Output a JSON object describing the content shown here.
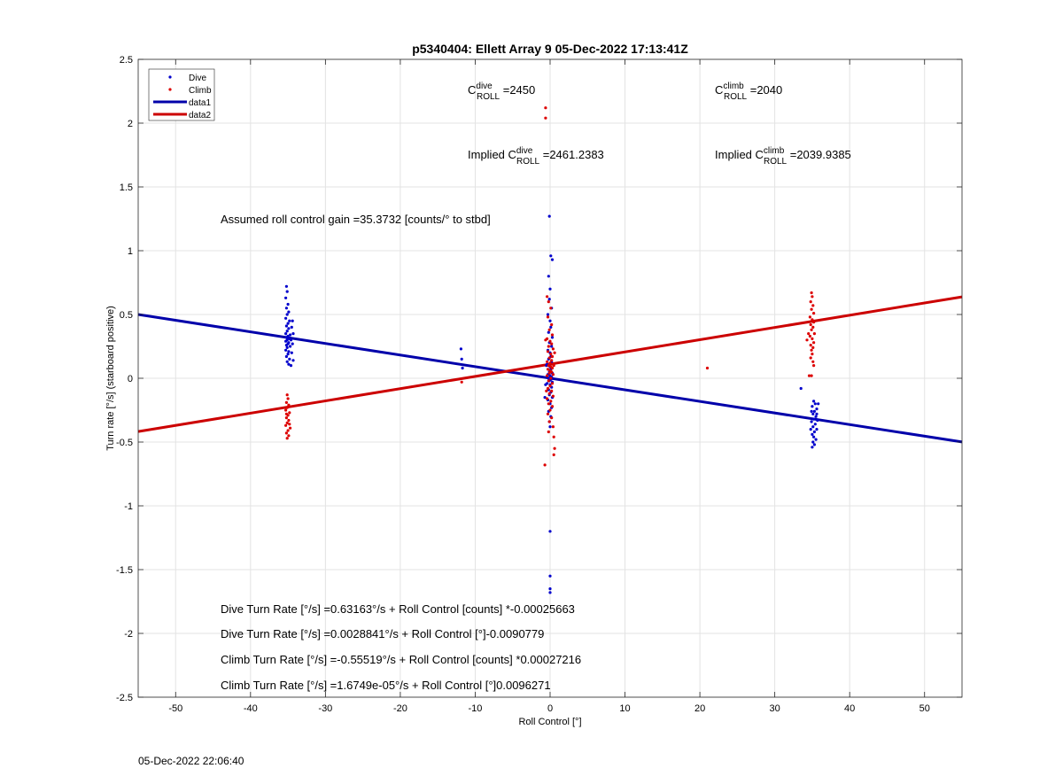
{
  "chart_data": {
    "type": "scatter",
    "title": "p5340404: Ellett Array 9 05-Dec-2022 17:13:41Z",
    "xlabel": "Roll Control [°]",
    "ylabel": "Turn rate [°/s] (starboard positive)",
    "xlim": [
      -55,
      55
    ],
    "ylim": [
      -2.5,
      2.5
    ],
    "xticks": [
      -50,
      -40,
      -30,
      -20,
      -10,
      0,
      10,
      20,
      30,
      40,
      50
    ],
    "yticks": [
      -2.5,
      -2,
      -1.5,
      -1,
      -0.5,
      0,
      0.5,
      1,
      1.5,
      2,
      2.5
    ],
    "grid": true,
    "legend": {
      "placement": "top-left",
      "entries": [
        "Dive",
        "Climb",
        "data1",
        "data2"
      ]
    },
    "series": [
      {
        "name": "Dive",
        "kind": "points",
        "color": "#0000cc",
        "points": [
          [
            -35.2,
            0.72
          ],
          [
            -35.1,
            0.68
          ],
          [
            -35.3,
            0.63
          ],
          [
            -35.0,
            0.58
          ],
          [
            -35.2,
            0.55
          ],
          [
            -34.9,
            0.52
          ],
          [
            -35.1,
            0.5
          ],
          [
            -35.3,
            0.47
          ],
          [
            -34.8,
            0.45
          ],
          [
            -35.0,
            0.43
          ],
          [
            -35.2,
            0.41
          ],
          [
            -34.9,
            0.39
          ],
          [
            -35.1,
            0.37
          ],
          [
            -35.3,
            0.35
          ],
          [
            -34.7,
            0.34
          ],
          [
            -35.0,
            0.33
          ],
          [
            -35.2,
            0.32
          ],
          [
            -34.8,
            0.31
          ],
          [
            -35.1,
            0.3
          ],
          [
            -35.3,
            0.29
          ],
          [
            -34.9,
            0.28
          ],
          [
            -35.0,
            0.27
          ],
          [
            -35.2,
            0.26
          ],
          [
            -34.7,
            0.25
          ],
          [
            -35.1,
            0.24
          ],
          [
            -35.3,
            0.22
          ],
          [
            -34.9,
            0.21
          ],
          [
            -35.0,
            0.19
          ],
          [
            -35.2,
            0.17
          ],
          [
            -34.8,
            0.15
          ],
          [
            -35.1,
            0.13
          ],
          [
            -34.9,
            0.11
          ],
          [
            -34.6,
            0.1
          ],
          [
            -34.4,
            0.45
          ],
          [
            -34.5,
            0.4
          ],
          [
            -34.3,
            0.35
          ],
          [
            -34.6,
            0.3
          ],
          [
            -34.4,
            0.27
          ],
          [
            -34.5,
            0.2
          ],
          [
            -34.3,
            0.14
          ],
          [
            -11.9,
            0.23
          ],
          [
            -11.8,
            0.15
          ],
          [
            -11.7,
            0.08
          ],
          [
            -0.1,
            1.27
          ],
          [
            0.1,
            0.96
          ],
          [
            0.3,
            0.93
          ],
          [
            -0.2,
            0.8
          ],
          [
            0.0,
            0.7
          ],
          [
            -0.1,
            0.62
          ],
          [
            0.2,
            0.55
          ],
          [
            -0.3,
            0.5
          ],
          [
            0.0,
            0.45
          ],
          [
            0.1,
            0.4
          ],
          [
            -0.2,
            0.36
          ],
          [
            0.3,
            0.32
          ],
          [
            -0.1,
            0.28
          ],
          [
            0.2,
            0.25
          ],
          [
            -0.3,
            0.22
          ],
          [
            0.0,
            0.2
          ],
          [
            0.1,
            0.17
          ],
          [
            -0.2,
            0.15
          ],
          [
            0.2,
            0.13
          ],
          [
            -0.4,
            0.11
          ],
          [
            0.0,
            0.09
          ],
          [
            0.1,
            0.07
          ],
          [
            -0.1,
            0.05
          ],
          [
            0.3,
            0.04
          ],
          [
            -0.3,
            0.03
          ],
          [
            0.0,
            0.02
          ],
          [
            0.2,
            0.01
          ],
          [
            -0.2,
            0.0
          ],
          [
            0.1,
            -0.01
          ],
          [
            -0.1,
            -0.02
          ],
          [
            0.3,
            -0.03
          ],
          [
            -0.4,
            -0.04
          ],
          [
            0.0,
            -0.05
          ],
          [
            0.2,
            -0.07
          ],
          [
            -0.2,
            -0.09
          ],
          [
            0.1,
            -0.11
          ],
          [
            -0.1,
            -0.13
          ],
          [
            0.3,
            -0.15
          ],
          [
            -0.3,
            -0.17
          ],
          [
            0.0,
            -0.2
          ],
          [
            0.2,
            -0.23
          ],
          [
            -0.2,
            -0.26
          ],
          [
            0.1,
            -0.3
          ],
          [
            -0.1,
            -0.34
          ],
          [
            0.0,
            -0.38
          ],
          [
            -0.6,
            -0.05
          ],
          [
            -0.5,
            0.1
          ],
          [
            -0.7,
            -0.15
          ],
          [
            0.0,
            -1.2
          ],
          [
            0.0,
            -1.55
          ],
          [
            0.0,
            -1.65
          ],
          [
            0.0,
            -1.68
          ],
          [
            33.5,
            -0.08
          ],
          [
            35.2,
            -0.18
          ],
          [
            35.4,
            -0.2
          ],
          [
            35.0,
            -0.22
          ],
          [
            35.6,
            -0.24
          ],
          [
            35.3,
            -0.26
          ],
          [
            35.1,
            -0.28
          ],
          [
            35.5,
            -0.3
          ],
          [
            35.2,
            -0.32
          ],
          [
            34.9,
            -0.34
          ],
          [
            35.4,
            -0.36
          ],
          [
            35.1,
            -0.38
          ],
          [
            35.6,
            -0.4
          ],
          [
            35.3,
            -0.42
          ],
          [
            35.0,
            -0.44
          ],
          [
            35.2,
            -0.46
          ],
          [
            35.5,
            -0.48
          ],
          [
            35.1,
            -0.5
          ],
          [
            35.3,
            -0.52
          ],
          [
            35.0,
            -0.54
          ],
          [
            34.9,
            -0.26
          ],
          [
            35.7,
            -0.33
          ],
          [
            35.8,
            -0.2
          ],
          [
            35.6,
            -0.28
          ],
          [
            34.8,
            -0.4
          ]
        ]
      },
      {
        "name": "Climb",
        "kind": "points",
        "color": "#dd0000",
        "points": [
          [
            -35.1,
            -0.13
          ],
          [
            -35.0,
            -0.16
          ],
          [
            -35.2,
            -0.19
          ],
          [
            -34.9,
            -0.21
          ],
          [
            -35.1,
            -0.23
          ],
          [
            -35.3,
            -0.25
          ],
          [
            -34.8,
            -0.27
          ],
          [
            -35.0,
            -0.29
          ],
          [
            -35.2,
            -0.31
          ],
          [
            -34.9,
            -0.33
          ],
          [
            -35.1,
            -0.35
          ],
          [
            -35.3,
            -0.37
          ],
          [
            -34.7,
            -0.39
          ],
          [
            -35.0,
            -0.41
          ],
          [
            -35.2,
            -0.43
          ],
          [
            -34.9,
            -0.45
          ],
          [
            -35.1,
            -0.47
          ],
          [
            -34.8,
            -0.36
          ],
          [
            -35.2,
            -0.28
          ],
          [
            -11.8,
            -0.03
          ],
          [
            -0.6,
            2.12
          ],
          [
            -0.6,
            2.04
          ],
          [
            -0.4,
            0.64
          ],
          [
            -0.2,
            0.6
          ],
          [
            0.1,
            0.55
          ],
          [
            -0.3,
            0.48
          ],
          [
            0.2,
            0.42
          ],
          [
            -0.1,
            0.38
          ],
          [
            0.3,
            0.34
          ],
          [
            -0.4,
            0.31
          ],
          [
            0.0,
            0.29
          ],
          [
            0.2,
            0.27
          ],
          [
            -0.2,
            0.25
          ],
          [
            0.4,
            0.23
          ],
          [
            -0.3,
            0.21
          ],
          [
            0.1,
            0.19
          ],
          [
            0.3,
            0.17
          ],
          [
            -0.1,
            0.16
          ],
          [
            0.2,
            0.14
          ],
          [
            -0.4,
            0.13
          ],
          [
            0.0,
            0.12
          ],
          [
            0.4,
            0.11
          ],
          [
            -0.2,
            0.1
          ],
          [
            0.1,
            0.09
          ],
          [
            0.3,
            0.08
          ],
          [
            -0.3,
            0.07
          ],
          [
            0.0,
            0.06
          ],
          [
            0.2,
            0.05
          ],
          [
            -0.1,
            0.04
          ],
          [
            0.4,
            0.03
          ],
          [
            -0.4,
            0.02
          ],
          [
            0.1,
            0.0
          ],
          [
            -0.2,
            -0.02
          ],
          [
            0.3,
            -0.04
          ],
          [
            0.0,
            -0.06
          ],
          [
            -0.3,
            -0.08
          ],
          [
            0.2,
            -0.1
          ],
          [
            -0.1,
            -0.12
          ],
          [
            0.4,
            -0.14
          ],
          [
            -0.4,
            -0.16
          ],
          [
            0.1,
            -0.18
          ],
          [
            -0.2,
            -0.2
          ],
          [
            0.3,
            -0.22
          ],
          [
            0.0,
            -0.25
          ],
          [
            -0.3,
            -0.28
          ],
          [
            0.2,
            -0.31
          ],
          [
            -0.1,
            -0.34
          ],
          [
            0.4,
            -0.38
          ],
          [
            -0.2,
            -0.42
          ],
          [
            0.5,
            -0.46
          ],
          [
            0.6,
            -0.55
          ],
          [
            0.5,
            -0.6
          ],
          [
            -0.7,
            -0.68
          ],
          [
            -0.5,
            -0.1
          ],
          [
            0.6,
            0.2
          ],
          [
            0.5,
            0.1
          ],
          [
            -0.6,
            0.3
          ],
          [
            21.0,
            0.08
          ],
          [
            34.3,
            0.3
          ],
          [
            34.9,
            0.67
          ],
          [
            35.0,
            0.64
          ],
          [
            34.8,
            0.6
          ],
          [
            35.1,
            0.57
          ],
          [
            34.9,
            0.54
          ],
          [
            35.2,
            0.51
          ],
          [
            34.7,
            0.48
          ],
          [
            35.0,
            0.46
          ],
          [
            35.2,
            0.44
          ],
          [
            34.8,
            0.42
          ],
          [
            35.1,
            0.4
          ],
          [
            34.9,
            0.38
          ],
          [
            35.3,
            0.35
          ],
          [
            34.7,
            0.33
          ],
          [
            35.0,
            0.31
          ],
          [
            35.2,
            0.28
          ],
          [
            34.8,
            0.26
          ],
          [
            35.1,
            0.24
          ],
          [
            34.9,
            0.22
          ],
          [
            35.0,
            0.19
          ],
          [
            34.8,
            0.16
          ],
          [
            35.1,
            0.13
          ],
          [
            35.2,
            0.1
          ],
          [
            34.5,
            0.35
          ],
          [
            34.6,
            0.02
          ],
          [
            34.9,
            0.02
          ]
        ]
      },
      {
        "name": "data1",
        "kind": "line",
        "color": "#0000aa",
        "points": [
          [
            -55,
            0.4999
          ],
          [
            55,
            -0.4995
          ]
        ]
      },
      {
        "name": "data2",
        "kind": "line",
        "color": "#cc0000",
        "points": [
          [
            -55,
            -0.4177
          ],
          [
            55,
            0.6385
          ]
        ]
      }
    ],
    "annotations": {
      "c_dive": {
        "prefix": "C",
        "sup": "dive",
        "sub": "ROLL",
        "rest": " =2450"
      },
      "c_climb": {
        "prefix": "C",
        "sup": "climb",
        "sub": "ROLL",
        "rest": " =2040"
      },
      "implied_dive": {
        "prefix": "Implied C",
        "sup": "dive",
        "sub": "ROLL",
        "rest": " =2461.2383"
      },
      "implied_climb": {
        "prefix": "Implied C",
        "sup": "climb",
        "sub": "ROLL",
        "rest": " =2039.9385"
      },
      "gain": "Assumed roll control gain =35.3732 [counts/° to stbd]",
      "eq1": "Dive Turn Rate [°/s] =0.63163°/s + Roll Control [counts] *-0.00025663",
      "eq2": "Dive Turn Rate [°/s] =0.0028841°/s + Roll Control [°]-0.0090779",
      "eq3": "Climb Turn Rate [°/s] =-0.55519°/s + Roll Control [counts] *0.00027216",
      "eq4": "Climb Turn Rate [°/s] =1.6749e-05°/s + Roll Control [°]0.0096271"
    }
  },
  "footer": {
    "timestamp": "05-Dec-2022 22:06:40"
  }
}
